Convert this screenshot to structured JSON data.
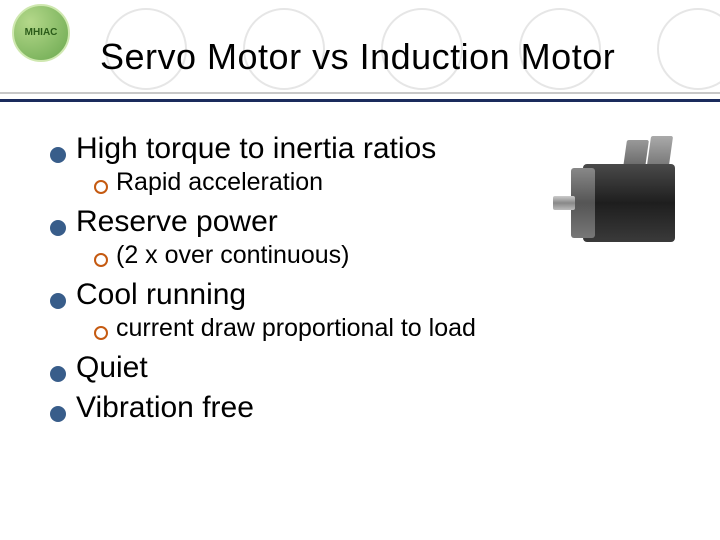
{
  "title": "Servo Motor vs Induction Motor",
  "logo_label": "MHIAC",
  "bullets": [
    {
      "level": 1,
      "text": "High torque to inertia ratios"
    },
    {
      "level": 2,
      "text": "Rapid acceleration"
    },
    {
      "level": 1,
      "text": "Reserve power"
    },
    {
      "level": 2,
      "text": "(2 x over continuous)"
    },
    {
      "level": 1,
      "text": "Cool running"
    },
    {
      "level": 2,
      "text": "current draw proportional to load"
    },
    {
      "level": 1,
      "text": "Quiet"
    },
    {
      "level": 1,
      "text": "Vibration free"
    }
  ],
  "style": {
    "bullet_l1_color": "#385d8a",
    "bullet_l2_color": "#c55a11",
    "title_fontsize": 36,
    "l1_fontsize": 30,
    "l2_fontsize": 25,
    "header_rule_color": "#1a2b5c",
    "deco_circle_color": "#e6e6e6",
    "background": "#ffffff"
  }
}
